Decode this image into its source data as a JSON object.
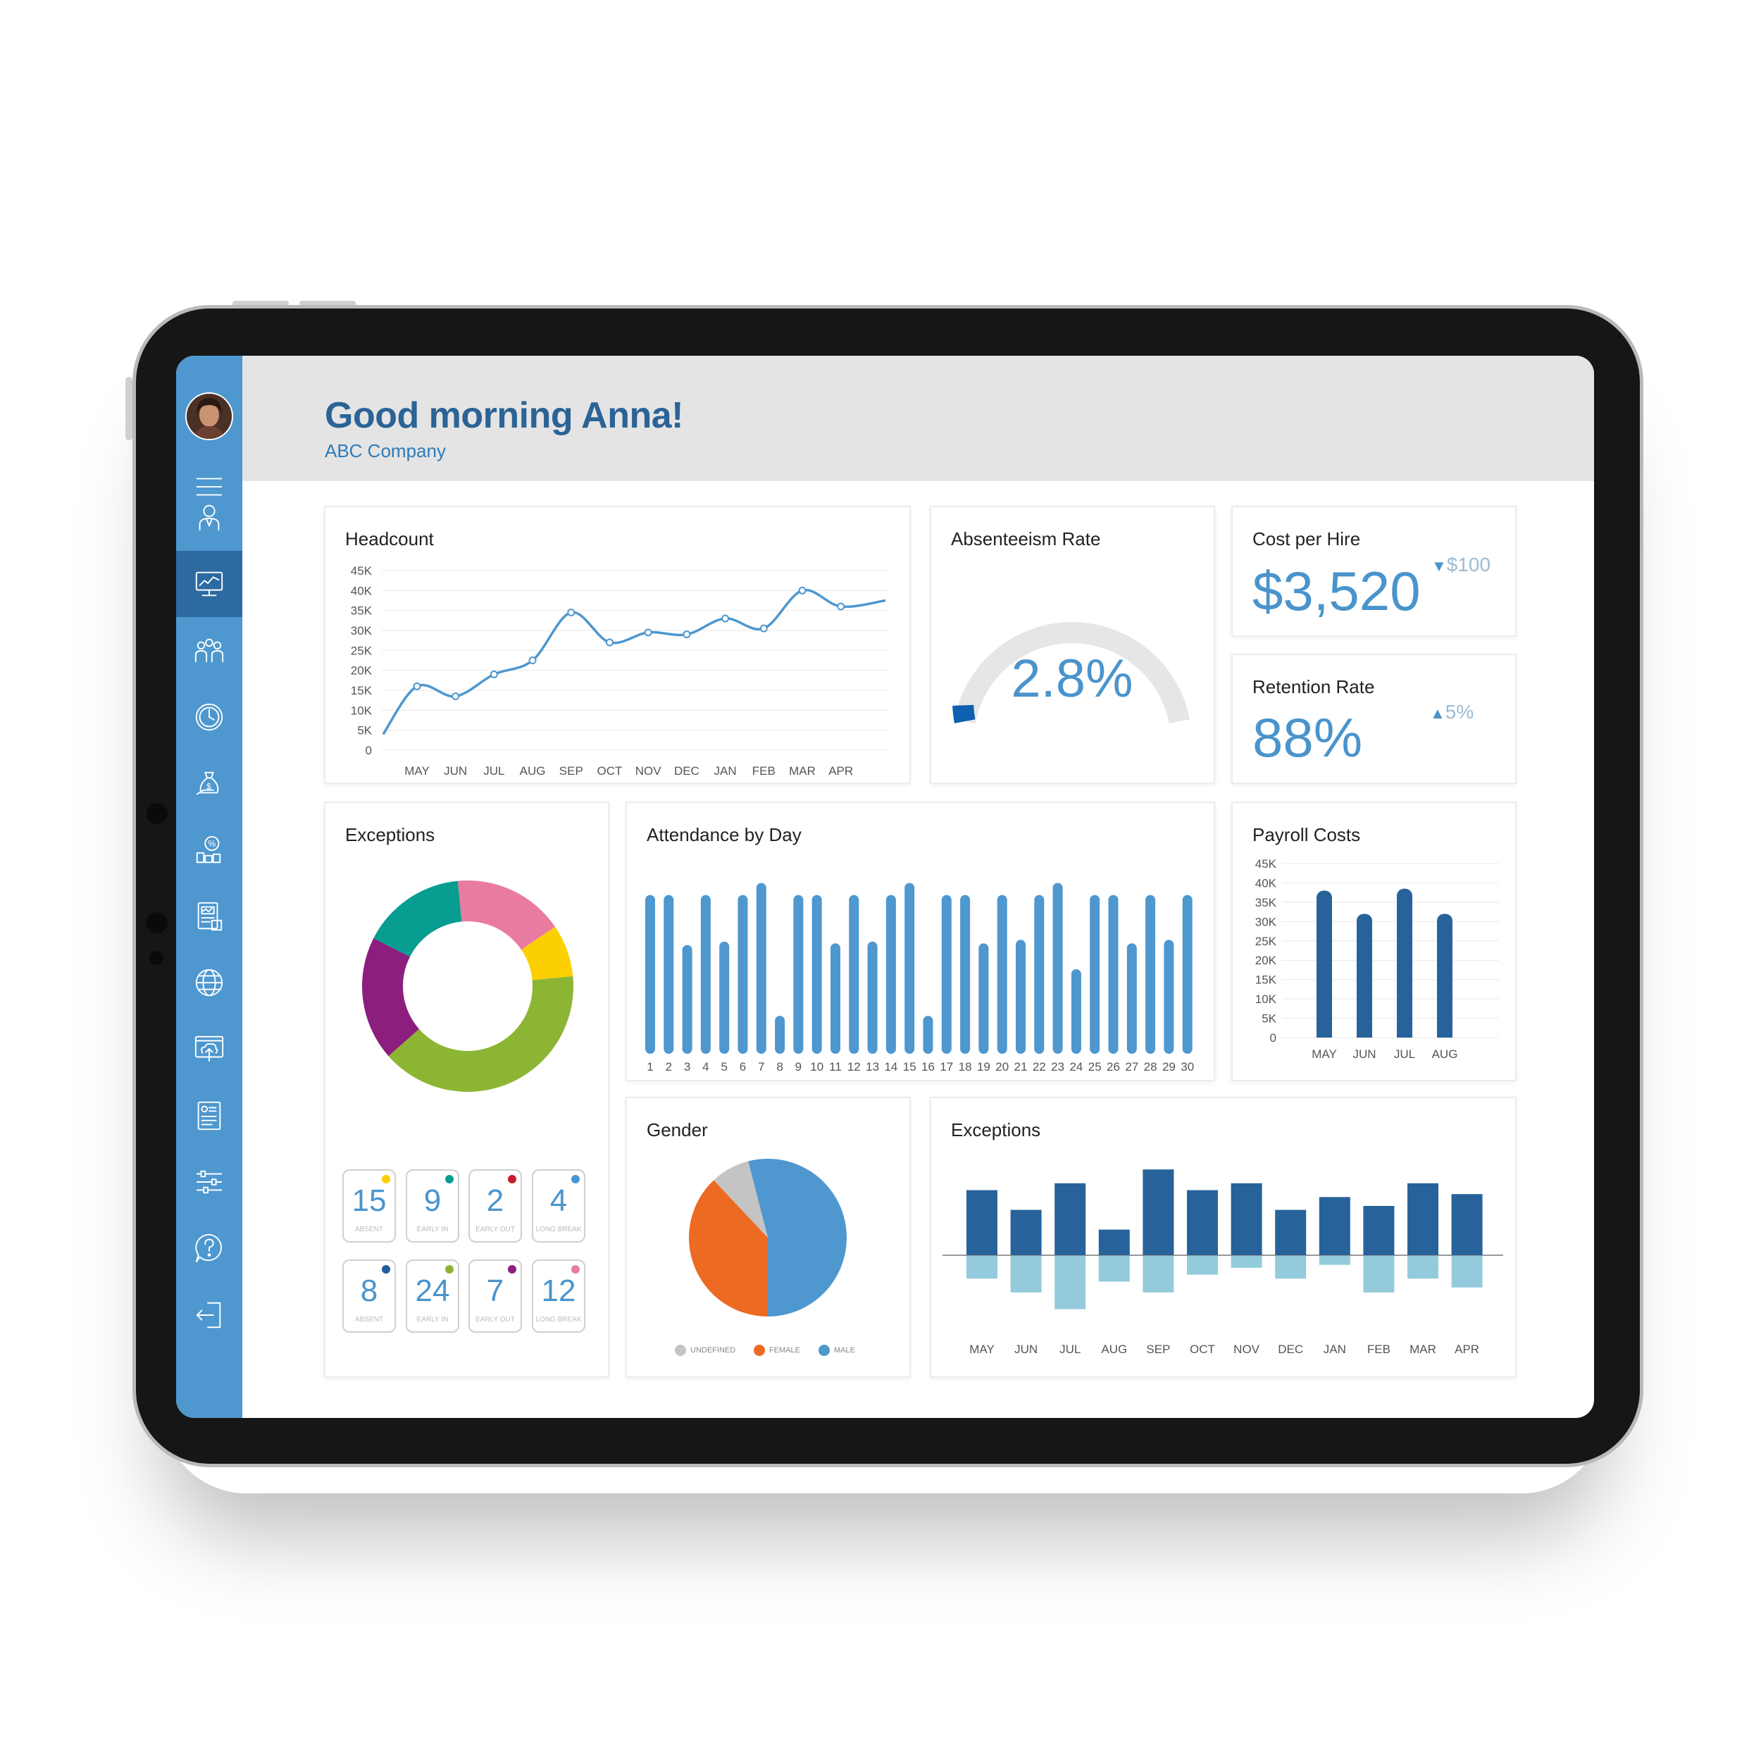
{
  "header": {
    "greeting": "Good morning Anna!",
    "company": "ABC Company"
  },
  "colors": {
    "sidebar": "#4e97cf",
    "sidebar_active": "#2d6aa2",
    "accent": "#4a94cc",
    "dark_bar": "#27639a",
    "light_bar": "#93cbdc"
  },
  "sidebar": {
    "items": [
      {
        "icon": "menu-icon"
      },
      {
        "icon": "employee-icon"
      },
      {
        "icon": "dashboard-icon",
        "active": true
      },
      {
        "icon": "team-icon"
      },
      {
        "icon": "clock-icon"
      },
      {
        "icon": "money-bag-icon"
      },
      {
        "icon": "percentage-icon"
      },
      {
        "icon": "report-icon"
      },
      {
        "icon": "globe-icon"
      },
      {
        "icon": "cloud-upload-icon"
      },
      {
        "icon": "document-icon"
      },
      {
        "icon": "sliders-icon"
      },
      {
        "icon": "help-icon"
      },
      {
        "icon": "logout-icon"
      }
    ]
  },
  "headcount": {
    "title": "Headcount",
    "chart_data": {
      "type": "line",
      "x": [
        "MAY",
        "JUN",
        "JUL",
        "AUG",
        "SEP",
        "OCT",
        "NOV",
        "DEC",
        "JAN",
        "FEB",
        "MAR",
        "APR"
      ],
      "y_ticks": [
        "45K",
        "40K",
        "35K",
        "30K",
        "25K",
        "20K",
        "15K",
        "10K",
        "5K",
        "0"
      ],
      "series": [
        {
          "values": [
            16000,
            13500,
            19000,
            22500,
            34500,
            27000,
            29500,
            29000,
            33000,
            30500,
            40000,
            36000
          ]
        }
      ],
      "ylim": [
        0,
        45000
      ]
    }
  },
  "absenteeism": {
    "title": "Absenteeism Rate",
    "value_label": "2.8%",
    "value": 2.8
  },
  "cost_per_hire": {
    "title": "Cost per Hire",
    "value": "$3,520",
    "delta": "$100",
    "delta_arrow": "▼"
  },
  "retention": {
    "title": "Retention Rate",
    "value": "88%",
    "delta": "5%",
    "delta_arrow": "▲"
  },
  "exceptions_donut": {
    "title": "Exceptions",
    "chart_data": {
      "type": "pie",
      "slices": [
        {
          "value": 17,
          "color": "#e97ba0"
        },
        {
          "value": 8,
          "color": "#fcd000"
        },
        {
          "value": 40,
          "color": "#8db534"
        },
        {
          "value": 19,
          "color": "#8c1e7e"
        },
        {
          "value": 16,
          "color": "#079d91"
        }
      ]
    },
    "tiles": [
      {
        "value": "15",
        "label": "ABSENT",
        "color": "#fcd000"
      },
      {
        "value": "9",
        "label": "EARLY IN",
        "color": "#079d91"
      },
      {
        "value": "2",
        "label": "EARLY OUT",
        "color": "#c41c2a"
      },
      {
        "value": "4",
        "label": "LONG BREAK",
        "color": "#4a94cc"
      },
      {
        "value": "8",
        "label": "ABSENT",
        "color": "#1f5e9c"
      },
      {
        "value": "24",
        "label": "EARLY IN",
        "color": "#8db534"
      },
      {
        "value": "7",
        "label": "EARLY OUT",
        "color": "#8c1e7e"
      },
      {
        "value": "12",
        "label": "LONG BREAK",
        "color": "#e97ba0"
      }
    ]
  },
  "attendance": {
    "title": "Attendance by Day",
    "chart_data": {
      "type": "bar",
      "categories": [
        "1",
        "2",
        "3",
        "4",
        "5",
        "6",
        "7",
        "8",
        "9",
        "10",
        "11",
        "12",
        "13",
        "14",
        "15",
        "16",
        "17",
        "18",
        "19",
        "20",
        "21",
        "22",
        "23",
        "24",
        "25",
        "26",
        "27",
        "28",
        "29",
        "30"
      ],
      "values": [
        92,
        92,
        63,
        92,
        65,
        92,
        99,
        22,
        92,
        92,
        64,
        92,
        65,
        92,
        99,
        22,
        92,
        92,
        64,
        92,
        66,
        92,
        99,
        49,
        92,
        92,
        64,
        92,
        66,
        92
      ],
      "ylim": [
        0,
        100
      ]
    }
  },
  "payroll": {
    "title": "Payroll Costs",
    "chart_data": {
      "type": "bar",
      "categories": [
        "MAY",
        "JUN",
        "JUL",
        "AUG"
      ],
      "y_ticks": [
        "45K",
        "40K",
        "35K",
        "30K",
        "25K",
        "20K",
        "15K",
        "10K",
        "5K",
        "0"
      ],
      "values": [
        38000,
        32000,
        38500,
        32000
      ],
      "ylim": [
        0,
        45000
      ]
    }
  },
  "gender": {
    "title": "Gender",
    "chart_data": {
      "type": "pie",
      "slices": [
        {
          "name": "MALE",
          "value": 54,
          "color": "#4e97cf"
        },
        {
          "name": "FEMALE",
          "value": 38,
          "color": "#ed6a22"
        },
        {
          "name": "UNDEFINED",
          "value": 8,
          "color": "#c4c4c4"
        }
      ]
    },
    "legend": [
      {
        "label": "UNDEFINED",
        "color": "#c4c4c4"
      },
      {
        "label": "FEMALE",
        "color": "#ed6a22"
      },
      {
        "label": "MALE",
        "color": "#4e97cf"
      }
    ]
  },
  "exceptions_bars": {
    "title": "Exceptions",
    "chart_data": {
      "type": "bar",
      "categories": [
        "MAY",
        "JUN",
        "JUL",
        "AUG",
        "SEP",
        "OCT",
        "NOV",
        "DEC",
        "JAN",
        "FEB",
        "MAR",
        "APR"
      ],
      "series": [
        {
          "values": [
            66,
            46,
            73,
            26,
            87,
            66,
            73,
            46,
            59,
            50,
            73,
            62
          ]
        },
        {
          "values": [
            -23,
            -37,
            -54,
            -26,
            -37,
            -19,
            -12,
            -23,
            -9,
            -37,
            -23,
            -32
          ]
        }
      ],
      "ylim": [
        -60,
        100
      ]
    }
  }
}
